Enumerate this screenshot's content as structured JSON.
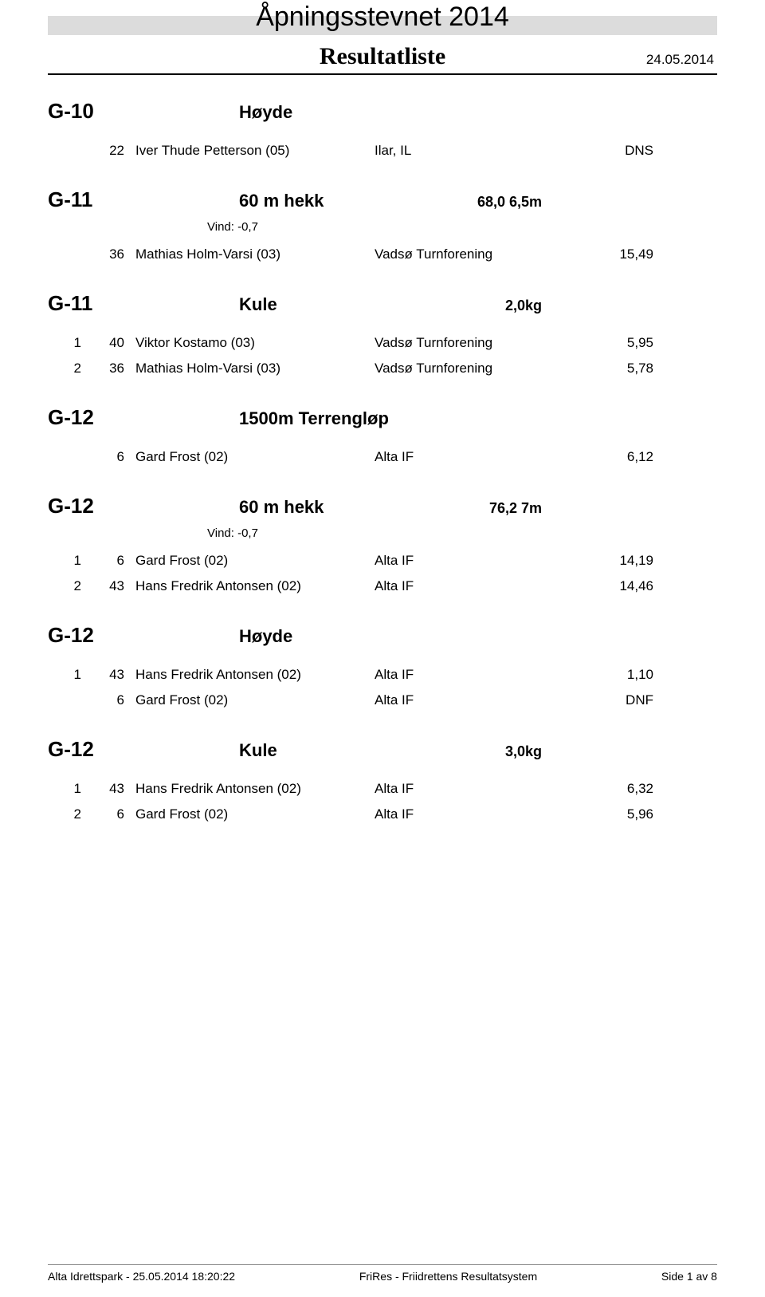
{
  "header": {
    "title": "Åpningsstevnet 2014",
    "subtitle": "Resultatliste",
    "date": "24.05.2014"
  },
  "sections": [
    {
      "code": "G-10",
      "event": "Høyde",
      "spec": "",
      "wind": "",
      "rows": [
        {
          "place": "",
          "bib": "22",
          "name": "Iver Thude Petterson (05)",
          "club": "Ilar, IL",
          "result": "DNS"
        }
      ]
    },
    {
      "code": "G-11",
      "event": "60 m hekk",
      "spec": "68,0 6,5m",
      "wind": "Vind: -0,7",
      "rows": [
        {
          "place": "",
          "bib": "36",
          "name": "Mathias Holm-Varsi (03)",
          "club": "Vadsø Turnforening",
          "result": "15,49"
        }
      ]
    },
    {
      "code": "G-11",
      "event": "Kule",
      "spec": "2,0kg",
      "wind": "",
      "rows": [
        {
          "place": "1",
          "bib": "40",
          "name": "Viktor Kostamo (03)",
          "club": "Vadsø Turnforening",
          "result": "5,95"
        },
        {
          "place": "2",
          "bib": "36",
          "name": "Mathias Holm-Varsi (03)",
          "club": "Vadsø Turnforening",
          "result": "5,78"
        }
      ]
    },
    {
      "code": "G-12",
      "event": "1500m Terrengløp",
      "spec": "",
      "wind": "",
      "rows": [
        {
          "place": "",
          "bib": "6",
          "name": "Gard Frost (02)",
          "club": "Alta IF",
          "result": "6,12"
        }
      ]
    },
    {
      "code": "G-12",
      "event": "60 m hekk",
      "spec": "76,2 7m",
      "wind": "Vind: -0,7",
      "rows": [
        {
          "place": "1",
          "bib": "6",
          "name": "Gard Frost (02)",
          "club": "Alta IF",
          "result": "14,19"
        },
        {
          "place": "2",
          "bib": "43",
          "name": "Hans Fredrik Antonsen (02)",
          "club": "Alta IF",
          "result": "14,46"
        }
      ]
    },
    {
      "code": "G-12",
      "event": "Høyde",
      "spec": "",
      "wind": "",
      "rows": [
        {
          "place": "1",
          "bib": "43",
          "name": "Hans Fredrik Antonsen (02)",
          "club": "Alta IF",
          "result": "1,10"
        },
        {
          "place": "",
          "bib": "6",
          "name": "Gard Frost (02)",
          "club": "Alta IF",
          "result": "DNF"
        }
      ]
    },
    {
      "code": "G-12",
      "event": "Kule",
      "spec": "3,0kg",
      "wind": "",
      "rows": [
        {
          "place": "1",
          "bib": "43",
          "name": "Hans Fredrik Antonsen (02)",
          "club": "Alta IF",
          "result": "6,32"
        },
        {
          "place": "2",
          "bib": "6",
          "name": "Gard Frost (02)",
          "club": "Alta IF",
          "result": "5,96"
        }
      ]
    }
  ],
  "footer": {
    "left": "Alta Idrettspark - 25.05.2014 18:20:22",
    "center": "FriRes - Friidrettens Resultatsystem",
    "right": "Side 1 av 8"
  },
  "colors": {
    "band": "#dcdcdc",
    "text": "#000000",
    "rule": "#000000",
    "footer_rule": "#888888",
    "bg": "#ffffff"
  }
}
